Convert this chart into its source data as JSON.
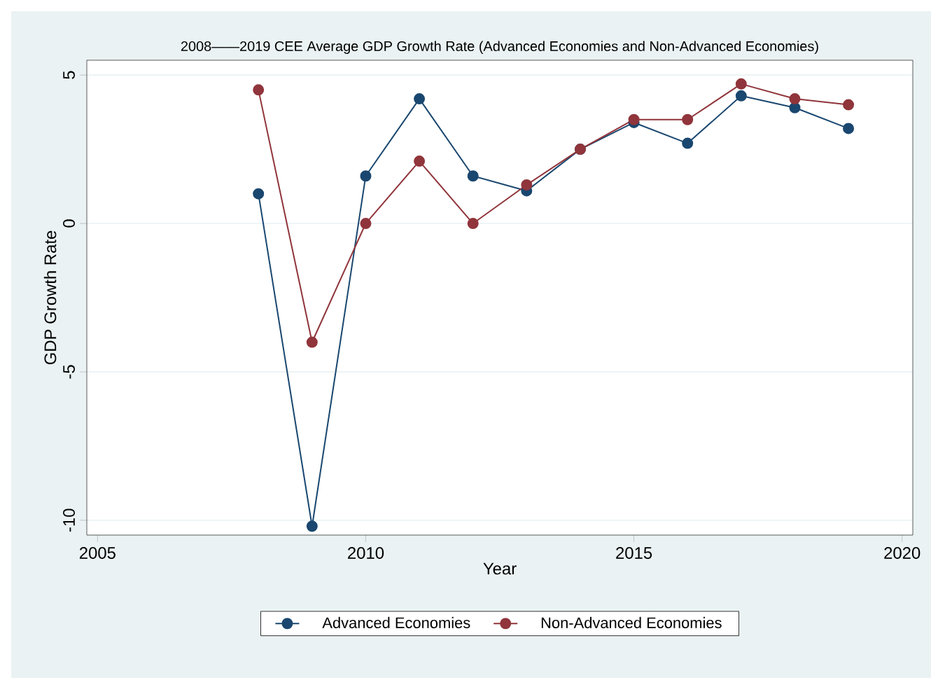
{
  "chart_data": {
    "type": "line",
    "title": "2008——2019 CEE Average GDP Growth Rate (Advanced Economies and Non-Advanced Economies)",
    "xlabel": "Year",
    "ylabel": "GDP Growth Rate",
    "x": [
      2008,
      2009,
      2010,
      2011,
      2012,
      2013,
      2014,
      2015,
      2016,
      2017,
      2018,
      2019
    ],
    "series": [
      {
        "name": "Advanced Economies",
        "color": "#1a476f",
        "values": [
          1.0,
          -10.2,
          1.6,
          4.2,
          1.6,
          1.1,
          2.5,
          3.4,
          2.7,
          4.3,
          3.9,
          3.2
        ]
      },
      {
        "name": "Non-Advanced Economies",
        "color": "#90353b",
        "values": [
          4.5,
          -4.0,
          0.0,
          2.1,
          0.0,
          1.3,
          2.5,
          3.5,
          3.5,
          4.7,
          4.2,
          4.0
        ]
      }
    ],
    "xlim": [
      2004.8,
      2020.2
    ],
    "ylim": [
      -10.5,
      5.5
    ],
    "xticks": [
      2005,
      2010,
      2015,
      2020
    ],
    "yticks": [
      -10,
      -5,
      0,
      5
    ],
    "grid": "y",
    "legend": "bottom",
    "marker": "circle",
    "line_style": "solid"
  }
}
